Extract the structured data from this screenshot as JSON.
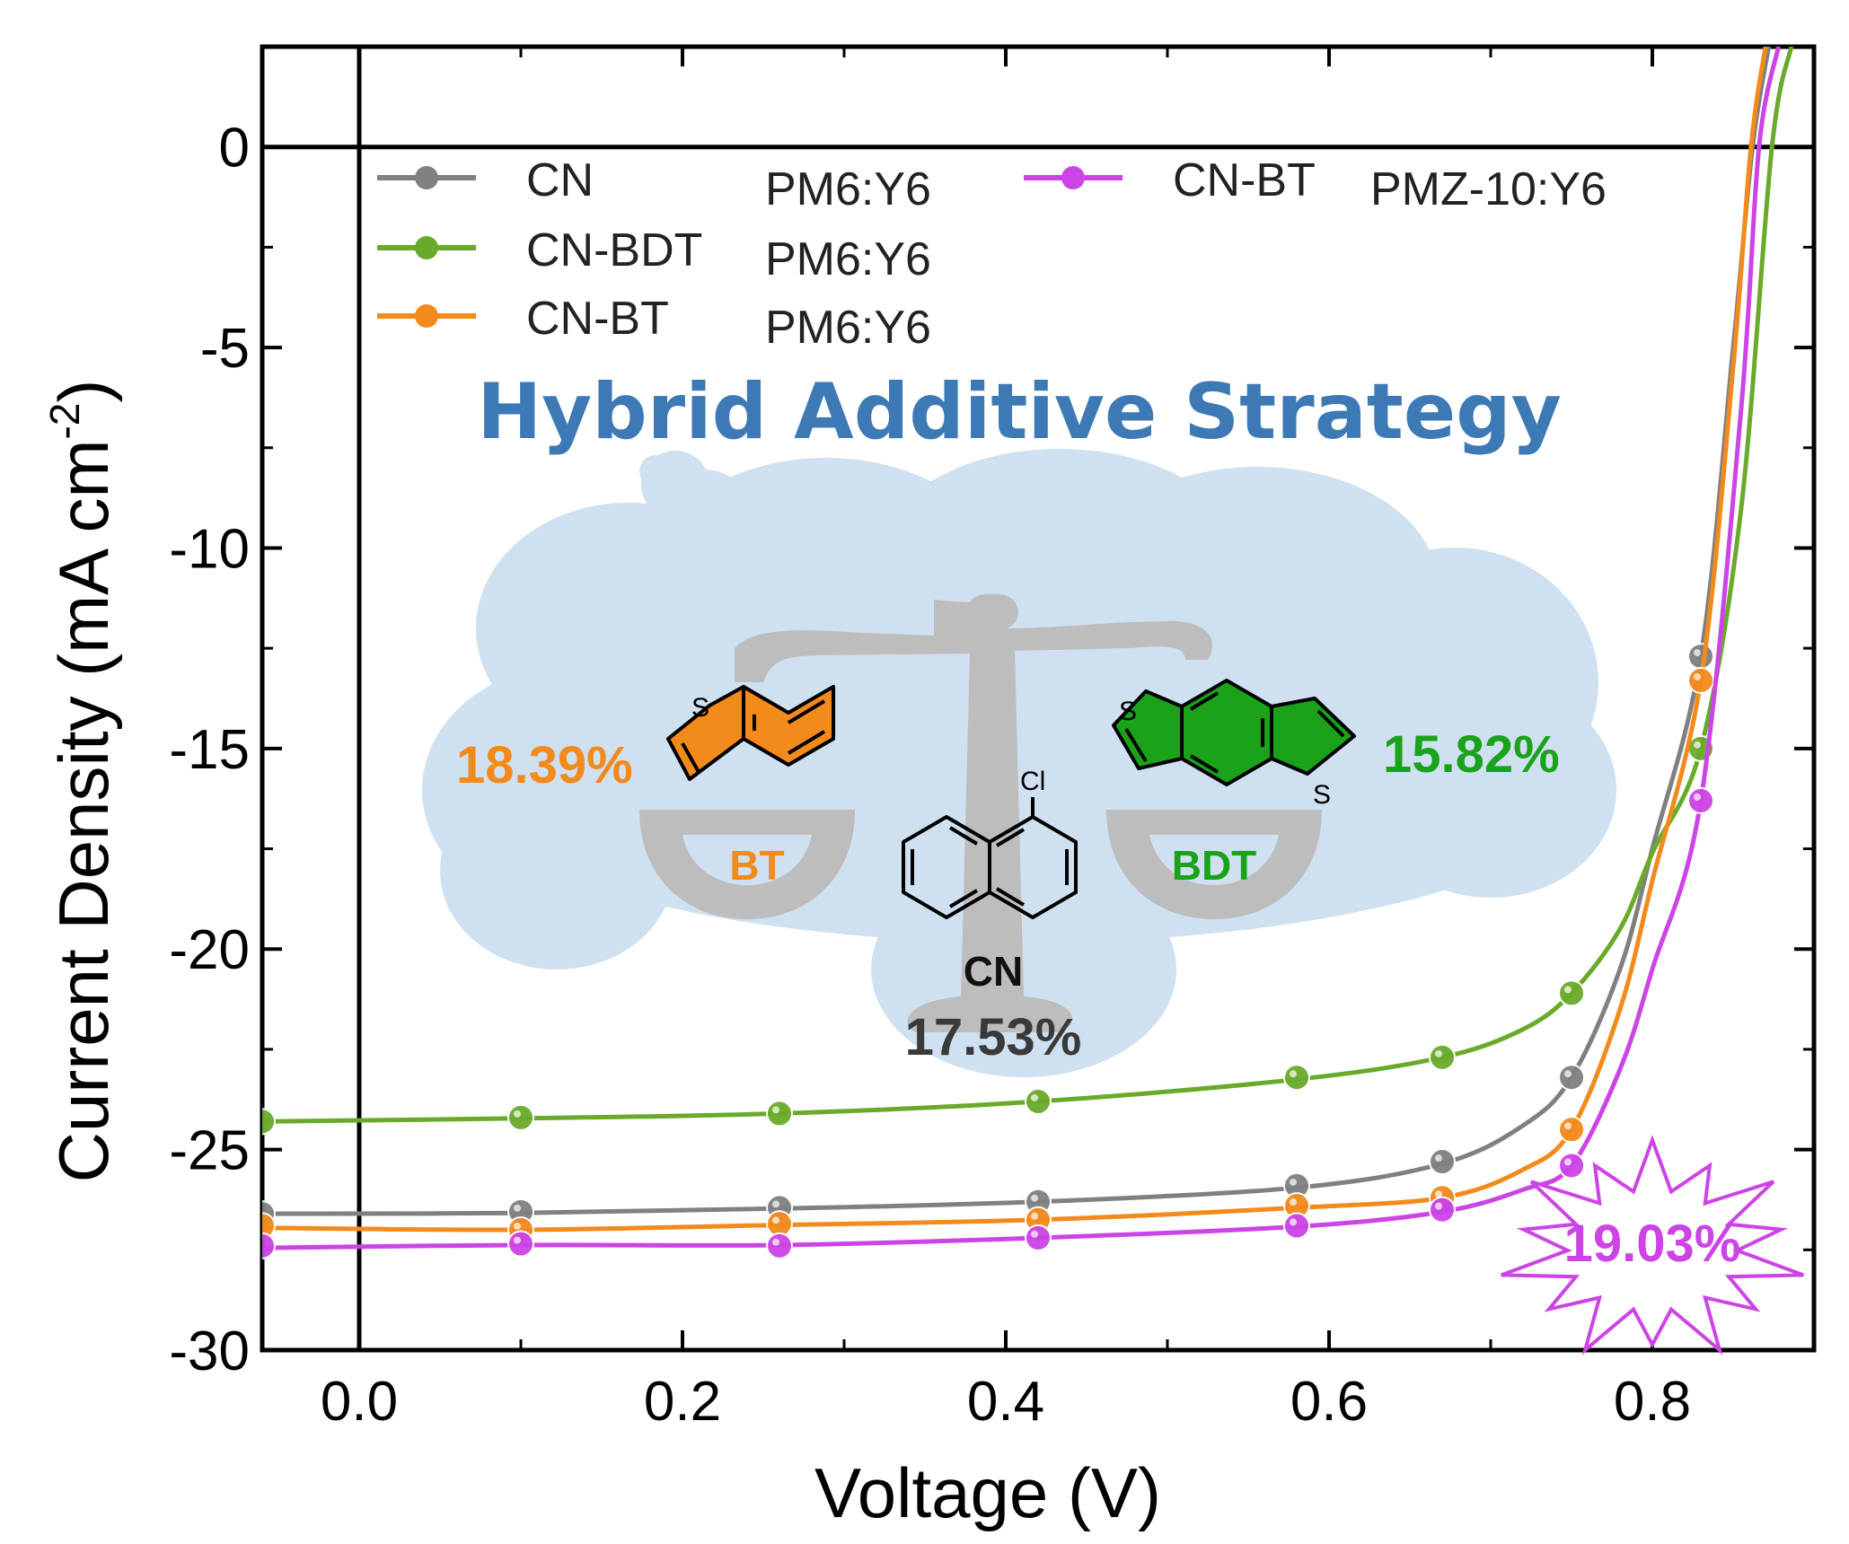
{
  "chart_data": {
    "type": "line",
    "xlabel": "Voltage (V)",
    "ylabel": "Current Density (mA cm",
    "ylabel_sup": "-2",
    "ylabel_close": ")",
    "xlim": [
      -0.06,
      0.9
    ],
    "ylim": [
      -30,
      2.5
    ],
    "xticks": [
      0.0,
      0.2,
      0.4,
      0.6,
      0.8
    ],
    "xtick_labels": [
      "0.0",
      "0.2",
      "0.4",
      "0.6",
      "0.8"
    ],
    "yticks": [
      0,
      -5,
      -10,
      -15,
      -20,
      -25,
      -30
    ],
    "ytick_labels": [
      "0",
      "-5",
      "-10",
      "-15",
      "-20",
      "-25",
      "-30"
    ],
    "series": [
      {
        "name": "CN",
        "blend": "PM6:Y6",
        "color": "#808080",
        "points": [
          [
            -0.06,
            -26.6
          ],
          [
            0.1,
            -26.55
          ],
          [
            0.26,
            -26.45
          ],
          [
            0.42,
            -26.3
          ],
          [
            0.58,
            -25.9
          ],
          [
            0.67,
            -25.3
          ],
          [
            0.75,
            -23.2
          ],
          [
            0.83,
            -12.7
          ]
        ],
        "curve": [
          [
            -0.06,
            -26.6
          ],
          [
            0.1,
            -26.58
          ],
          [
            0.26,
            -26.47
          ],
          [
            0.42,
            -26.3
          ],
          [
            0.58,
            -25.95
          ],
          [
            0.67,
            -25.35
          ],
          [
            0.72,
            -24.4
          ],
          [
            0.75,
            -23.2
          ],
          [
            0.78,
            -20.5
          ],
          [
            0.8,
            -17.5
          ],
          [
            0.83,
            -12.7
          ],
          [
            0.85,
            -5.0
          ],
          [
            0.862,
            0.0
          ],
          [
            0.872,
            2.5
          ]
        ]
      },
      {
        "name": "CN-BDT",
        "blend": "PM6:Y6",
        "color": "#6aaa2a",
        "points": [
          [
            -0.06,
            -24.3
          ],
          [
            0.1,
            -24.2
          ],
          [
            0.26,
            -24.1
          ],
          [
            0.42,
            -23.8
          ],
          [
            0.58,
            -23.2
          ],
          [
            0.67,
            -22.7
          ],
          [
            0.75,
            -21.1
          ],
          [
            0.83,
            -15.0
          ]
        ],
        "curve": [
          [
            -0.06,
            -24.3
          ],
          [
            0.1,
            -24.22
          ],
          [
            0.26,
            -24.1
          ],
          [
            0.42,
            -23.8
          ],
          [
            0.58,
            -23.25
          ],
          [
            0.67,
            -22.7
          ],
          [
            0.72,
            -22.0
          ],
          [
            0.75,
            -21.1
          ],
          [
            0.78,
            -19.5
          ],
          [
            0.8,
            -17.6
          ],
          [
            0.83,
            -15.0
          ],
          [
            0.855,
            -9.0
          ],
          [
            0.874,
            0.0
          ],
          [
            0.886,
            2.5
          ]
        ]
      },
      {
        "name": "CN-BT",
        "blend": "PM6:Y6",
        "color": "#f28a1c",
        "points": [
          [
            -0.06,
            -26.9
          ],
          [
            0.1,
            -27.0
          ],
          [
            0.26,
            -26.85
          ],
          [
            0.42,
            -26.75
          ],
          [
            0.58,
            -26.4
          ],
          [
            0.67,
            -26.2
          ],
          [
            0.75,
            -24.5
          ],
          [
            0.83,
            -13.3
          ]
        ],
        "curve": [
          [
            -0.06,
            -26.95
          ],
          [
            0.1,
            -27.0
          ],
          [
            0.26,
            -26.88
          ],
          [
            0.42,
            -26.75
          ],
          [
            0.58,
            -26.45
          ],
          [
            0.67,
            -26.2
          ],
          [
            0.72,
            -25.5
          ],
          [
            0.75,
            -24.5
          ],
          [
            0.78,
            -21.5
          ],
          [
            0.8,
            -18.3
          ],
          [
            0.83,
            -13.3
          ],
          [
            0.85,
            -5.5
          ],
          [
            0.861,
            0.0
          ],
          [
            0.87,
            2.5
          ]
        ]
      },
      {
        "name": "CN-BT",
        "blend": "PMZ-10:Y6",
        "color": "#cc44e6",
        "points": [
          [
            -0.06,
            -27.4
          ],
          [
            0.1,
            -27.35
          ],
          [
            0.26,
            -27.4
          ],
          [
            0.42,
            -27.2
          ],
          [
            0.58,
            -26.9
          ],
          [
            0.67,
            -26.5
          ],
          [
            0.75,
            -25.4
          ],
          [
            0.83,
            -16.3
          ]
        ],
        "curve": [
          [
            -0.06,
            -27.45
          ],
          [
            0.1,
            -27.38
          ],
          [
            0.26,
            -27.38
          ],
          [
            0.42,
            -27.2
          ],
          [
            0.58,
            -26.92
          ],
          [
            0.67,
            -26.55
          ],
          [
            0.72,
            -26.0
          ],
          [
            0.75,
            -25.4
          ],
          [
            0.78,
            -23.0
          ],
          [
            0.8,
            -20.5
          ],
          [
            0.83,
            -16.3
          ],
          [
            0.855,
            -6.5
          ],
          [
            0.866,
            0.0
          ],
          [
            0.878,
            2.5
          ]
        ]
      }
    ]
  },
  "overlay": {
    "title": "Hybrid Additive Strategy",
    "title_color": "#3d7ab5",
    "cloud_color": "#cfe0f1",
    "balance_color": "#bdbdbd",
    "bt": {
      "label": "BT",
      "pce": "18.39%",
      "color": "#f28a1c"
    },
    "bdt": {
      "label": "BDT",
      "pce": "15.82%",
      "color": "#1aa31a"
    },
    "cn": {
      "label": "CN",
      "pce": "17.53%",
      "atom_cl": "Cl"
    },
    "atom_s": "S",
    "star": {
      "pce": "19.03%",
      "color": "#cc44e6"
    }
  }
}
